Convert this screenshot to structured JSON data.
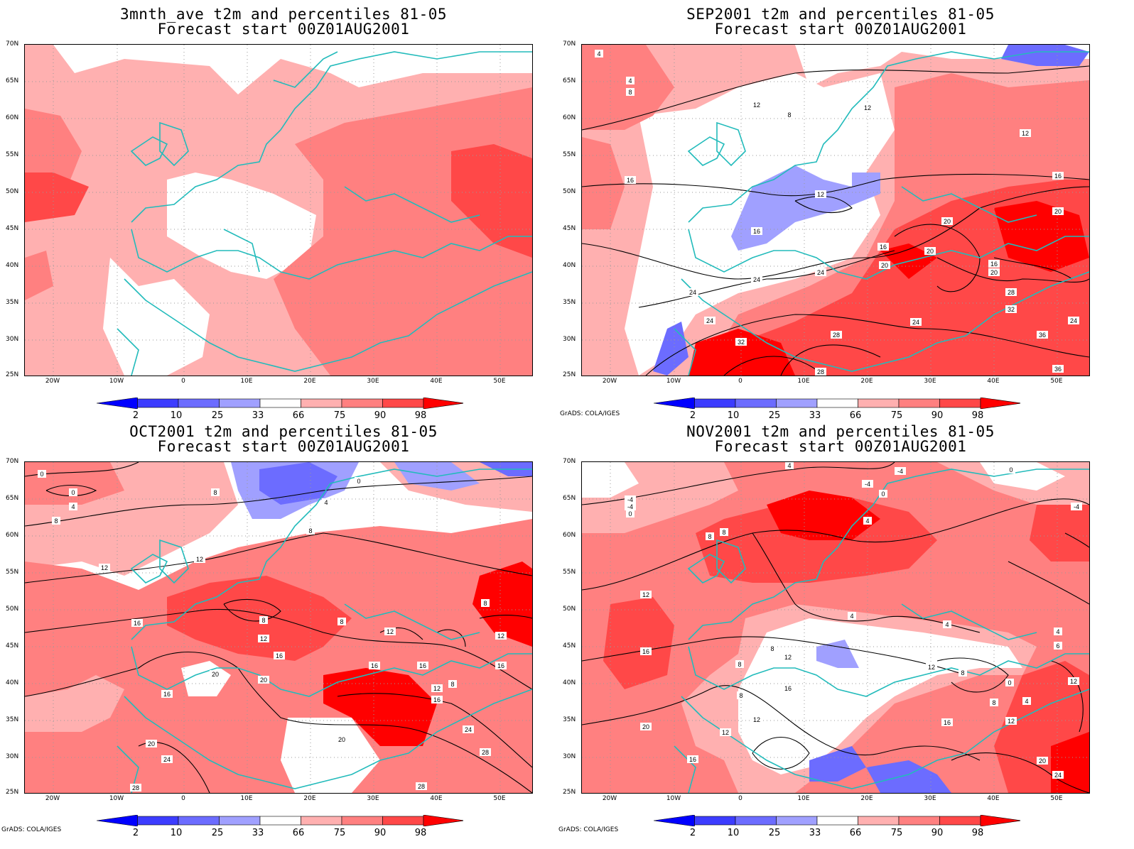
{
  "panels": [
    {
      "id": "p1",
      "title": "3mnth_ave t2m and percentiles 81-05",
      "subtitle": "Forecast start 00Z01AUG2001",
      "credit": ""
    },
    {
      "id": "p2",
      "title": "SEP2001 t2m and percentiles 81-05",
      "subtitle": "Forecast start 00Z01AUG2001",
      "credit": "GrADS: COLA/IGES"
    },
    {
      "id": "p3",
      "title": "OCT2001 t2m and percentiles 81-05",
      "subtitle": "Forecast start 00Z01AUG2001",
      "credit": "GrADS: COLA/IGES"
    },
    {
      "id": "p4",
      "title": "NOV2001 t2m and percentiles 81-05",
      "subtitle": "Forecast start 00Z01AUG2001",
      "credit": "GrADS: COLA/IGES"
    }
  ],
  "axes": {
    "lat_labels": [
      "70N",
      "65N",
      "60N",
      "55N",
      "50N",
      "45N",
      "40N",
      "35N",
      "30N",
      "25N"
    ],
    "lon_labels": [
      "20W",
      "10W",
      "0",
      "10E",
      "20E",
      "30E",
      "40E",
      "50E"
    ]
  },
  "colorbar": {
    "levels": [
      "2",
      "10",
      "25",
      "33",
      "66",
      "75",
      "90",
      "98"
    ],
    "colors": [
      "#0000ff",
      "#3c3cff",
      "#6c6cff",
      "#a0a0ff",
      "#ffffff",
      "#ffb0b0",
      "#ff8080",
      "#ff4848",
      "#ff0000"
    ]
  },
  "contour_labels": {
    "p2": [
      "4",
      "4",
      "8",
      "8",
      "12",
      "12",
      "12",
      "16",
      "16",
      "12",
      "16",
      "20",
      "20",
      "16",
      "20",
      "20",
      "24",
      "24",
      "24",
      "28",
      "32",
      "28",
      "32",
      "36",
      "24",
      "24",
      "16",
      "20",
      "28",
      "36",
      "24"
    ],
    "p3": [
      "0",
      "0",
      "4",
      "8",
      "8",
      "4",
      "0",
      "8",
      "12",
      "12",
      "16",
      "8",
      "12",
      "16",
      "8",
      "12",
      "16",
      "16",
      "12",
      "20",
      "20",
      "16",
      "20",
      "24",
      "28",
      "20",
      "24",
      "28",
      "28",
      "8",
      "12",
      "16",
      "16",
      "8"
    ],
    "p4": [
      "4",
      "-4",
      "-4",
      "0",
      "0",
      "4",
      "8",
      "8",
      "-4",
      "-4",
      "0",
      "-4",
      "12",
      "16",
      "20",
      "8",
      "8",
      "16",
      "12",
      "16",
      "12",
      "8",
      "12",
      "4",
      "8",
      "4",
      "12",
      "16",
      "20",
      "24",
      "12",
      "4",
      "6",
      "12",
      "0",
      "4",
      "8"
    ]
  }
}
